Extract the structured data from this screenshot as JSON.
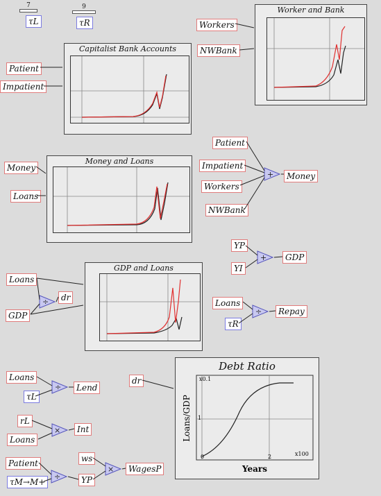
{
  "sliders": [
    {
      "value": "7",
      "label": "τL"
    },
    {
      "value": "9",
      "label": "τR"
    }
  ],
  "panels": {
    "capitalist": {
      "title": "Capitalist Bank Accounts",
      "inputs": [
        "Patient",
        "Impatient"
      ]
    },
    "worker_bank": {
      "title": "Worker and Bank",
      "inputs": [
        "Workers",
        "NWBank"
      ]
    },
    "money_loans": {
      "title": "Money and Loans",
      "inputs": [
        "Money",
        "Loans"
      ]
    },
    "gdp_loans": {
      "title": "GDP and Loans",
      "inputs": [
        "Loans",
        "GDP"
      ]
    },
    "debt_ratio": {
      "title": "Debt Ratio",
      "ylabel": "Loans/GDP",
      "xlabel": "Years",
      "scale": "x100",
      "ytick_top": "x0.1",
      "ytick_mid": "1",
      "xtick_0": "0",
      "xtick_2": "2"
    }
  },
  "money_sum": {
    "inputs": [
      "Patient",
      "Impatient",
      "Workers",
      "NWBank"
    ],
    "output": "Money",
    "op": "+"
  },
  "gdp_sum": {
    "inputs": [
      "YP",
      "YI"
    ],
    "output": "GDP",
    "op": "+"
  },
  "dr_calc": {
    "output": "dr",
    "op": "÷"
  },
  "repay_calc": {
    "inputs": [
      "Loans",
      "τR"
    ],
    "output": "Repay",
    "op": "÷"
  },
  "lend_calc": {
    "inputs": [
      "Loans",
      "τL"
    ],
    "output": "Lend",
    "op": "÷"
  },
  "int_calc": {
    "inputs": [
      "rL",
      "Loans"
    ],
    "output": "Int",
    "op": "×"
  },
  "wages_calc": {
    "inputs": [
      "Patient",
      "τM→M+"
    ],
    "mid": "YP",
    "factor": "ws",
    "output": "WagesP",
    "op1": "÷",
    "op2": "×"
  },
  "debt_input": "dr",
  "colors": {
    "red": "#e03030",
    "black": "#222222",
    "var_border": "#e07b7b",
    "par_border": "#7b7be0"
  }
}
